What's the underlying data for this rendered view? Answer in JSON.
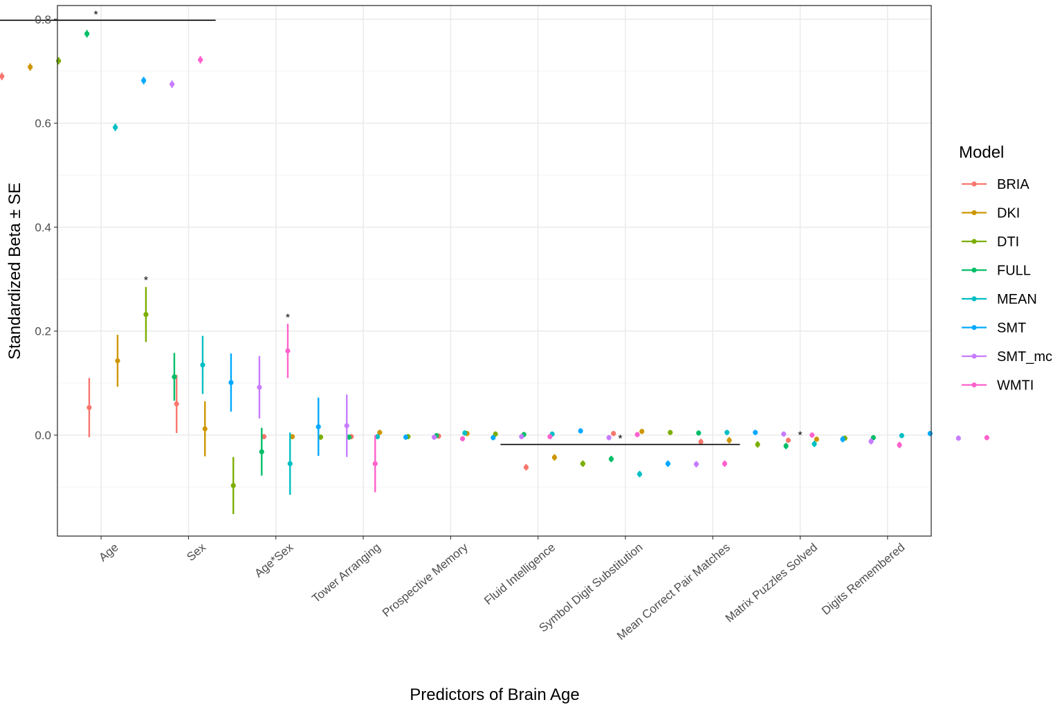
{
  "chart_data": {
    "type": "scatter",
    "subtype": "point-range (estimate ± SE), dodged by model",
    "title": "",
    "xlabel": "Predictors of Brain Age",
    "ylabel": "Standardized Beta ± SE",
    "ylim": [
      -0.195,
      0.83
    ],
    "yticks": [
      "0.0",
      "0.2",
      "0.4",
      "0.6",
      "0.8"
    ],
    "grid": true,
    "legend": {
      "title": "Model",
      "position": "right"
    },
    "categories": [
      "Age",
      "Sex",
      "Age*Sex",
      "Tower Arranging",
      "Prospective Memory",
      "Fluid Intelligence",
      "Symbol Digit Substitution",
      "Mean Correct Pair Matches",
      "Matrix Puzzles Solved",
      "Digits Remembered"
    ],
    "series": [
      {
        "name": "BRIA",
        "color": "#F8766D",
        "values": [
          0.69,
          0.053,
          0.06,
          -0.003,
          -0.003,
          -0.002,
          -0.062,
          0.003,
          -0.013,
          -0.01
        ],
        "se": [
          0.007,
          0.057,
          0.056,
          0.005,
          0.005,
          0.005,
          0.006,
          0.005,
          0.006,
          0.005
        ]
      },
      {
        "name": "DKI",
        "color": "#CD9600",
        "values": [
          0.708,
          0.143,
          0.012,
          -0.003,
          0.005,
          0.003,
          -0.043,
          0.007,
          -0.01,
          -0.008
        ],
        "se": [
          0.007,
          0.05,
          0.053,
          0.005,
          0.005,
          0.005,
          0.006,
          0.005,
          0.006,
          0.005
        ]
      },
      {
        "name": "DTI",
        "color": "#7CAE00",
        "values": [
          0.72,
          0.232,
          -0.097,
          -0.004,
          -0.003,
          0.002,
          -0.055,
          0.005,
          -0.018,
          -0.006
        ],
        "se": [
          0.007,
          0.053,
          0.055,
          0.005,
          0.005,
          0.005,
          0.006,
          0.005,
          0.006,
          0.005
        ]
      },
      {
        "name": "FULL",
        "color": "#00BE67",
        "values": [
          0.772,
          0.112,
          -0.032,
          -0.004,
          -0.001,
          0.001,
          -0.046,
          0.004,
          -0.021,
          -0.005
        ],
        "se": [
          0.007,
          0.046,
          0.046,
          0.005,
          0.005,
          0.005,
          0.006,
          0.005,
          0.006,
          0.005
        ]
      },
      {
        "name": "MEAN",
        "color": "#00BFC4",
        "values": [
          0.592,
          0.135,
          -0.055,
          -0.003,
          0.004,
          0.002,
          -0.075,
          0.005,
          -0.017,
          -0.001
        ],
        "se": [
          0.007,
          0.056,
          0.06,
          0.005,
          0.005,
          0.005,
          0.006,
          0.005,
          0.006,
          0.005
        ]
      },
      {
        "name": "SMT",
        "color": "#00A9FF",
        "values": [
          0.682,
          0.101,
          0.016,
          -0.004,
          -0.005,
          0.008,
          -0.055,
          0.005,
          -0.008,
          0.003
        ],
        "se": [
          0.007,
          0.056,
          0.056,
          0.005,
          0.005,
          0.005,
          0.006,
          0.005,
          0.006,
          0.005
        ]
      },
      {
        "name": "SMT_mc",
        "color": "#C77CFF",
        "values": [
          0.675,
          0.092,
          0.018,
          -0.004,
          -0.003,
          -0.005,
          -0.056,
          0.002,
          -0.012,
          -0.006
        ],
        "se": [
          0.007,
          0.06,
          0.06,
          0.005,
          0.005,
          0.005,
          0.006,
          0.005,
          0.006,
          0.005
        ]
      },
      {
        "name": "WMTI",
        "color": "#FF61CC",
        "values": [
          0.722,
          0.162,
          -0.055,
          -0.007,
          -0.003,
          0.001,
          -0.055,
          0.0,
          -0.019,
          -0.005
        ],
        "se": [
          0.007,
          0.052,
          0.055,
          0.005,
          0.005,
          0.005,
          0.006,
          0.005,
          0.006,
          0.005
        ]
      }
    ],
    "annotations": [
      {
        "label": "*",
        "category": "Age",
        "type": "bracket",
        "y": 0.798
      },
      {
        "label": "*",
        "category": "Sex",
        "series": "DTI",
        "y": 0.296
      },
      {
        "label": "*",
        "category": "Sex",
        "series": "WMTI",
        "y": 0.224
      },
      {
        "label": "*",
        "category": "Symbol Digit Substitution",
        "type": "bracket",
        "y": -0.018
      },
      {
        "label": "*",
        "category": "Matrix Puzzles Solved",
        "y": -0.002
      }
    ]
  }
}
